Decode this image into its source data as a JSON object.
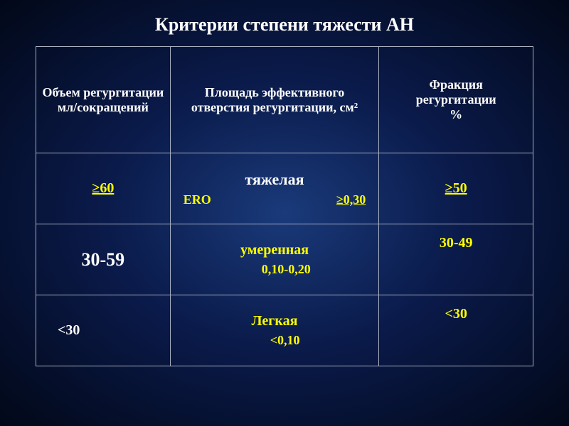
{
  "title": "Критерии степени тяжести АН",
  "headers": {
    "col1": "Объем регургитации мл/сокращений",
    "col2": "Площадь эффективного отверстия регургитации, см²",
    "col3": "Фракция\n регургитации\n%"
  },
  "rows": {
    "severe": {
      "volume": "≥60",
      "severity_label": "тяжелая",
      "ero_label": "ERO",
      "ero_value": "≥0,30",
      "fraction": "≥50"
    },
    "moderate": {
      "volume": "30-59",
      "severity_label": "умеренная",
      "value": "0,10-0,20",
      "fraction": "30-49"
    },
    "mild": {
      "volume": "<30",
      "severity_label": "Легкая",
      "value": "<0,10",
      "fraction": "<30"
    }
  },
  "colors": {
    "yellow": "#ffff00",
    "white": "#ffffff",
    "border": "#a8b0c0",
    "bg_center": "#1a3a7a",
    "bg_mid": "#0a1a4a",
    "bg_edge": "#020818"
  },
  "fonts": {
    "title_size": 26,
    "header_size": 18,
    "data_size": 20,
    "big_range_size": 26
  }
}
